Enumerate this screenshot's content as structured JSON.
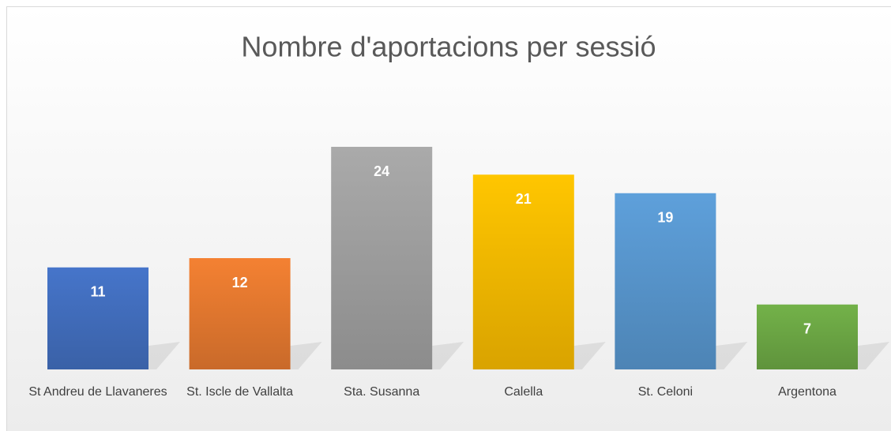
{
  "chart_data": {
    "type": "bar",
    "title": "Nombre d'aportacions per sessió",
    "categories": [
      "St Andreu de Llavaneres",
      "St. Iscle de Vallalta",
      "Sta. Susanna",
      "Calella",
      "St. Celoni",
      "Argentona"
    ],
    "values": [
      11,
      12,
      24,
      21,
      19,
      7
    ],
    "colors": [
      "#4472c4",
      "#ed7d31",
      "#a5a5a5",
      "#ffc000",
      "#5b9bd5",
      "#70ad47"
    ]
  }
}
